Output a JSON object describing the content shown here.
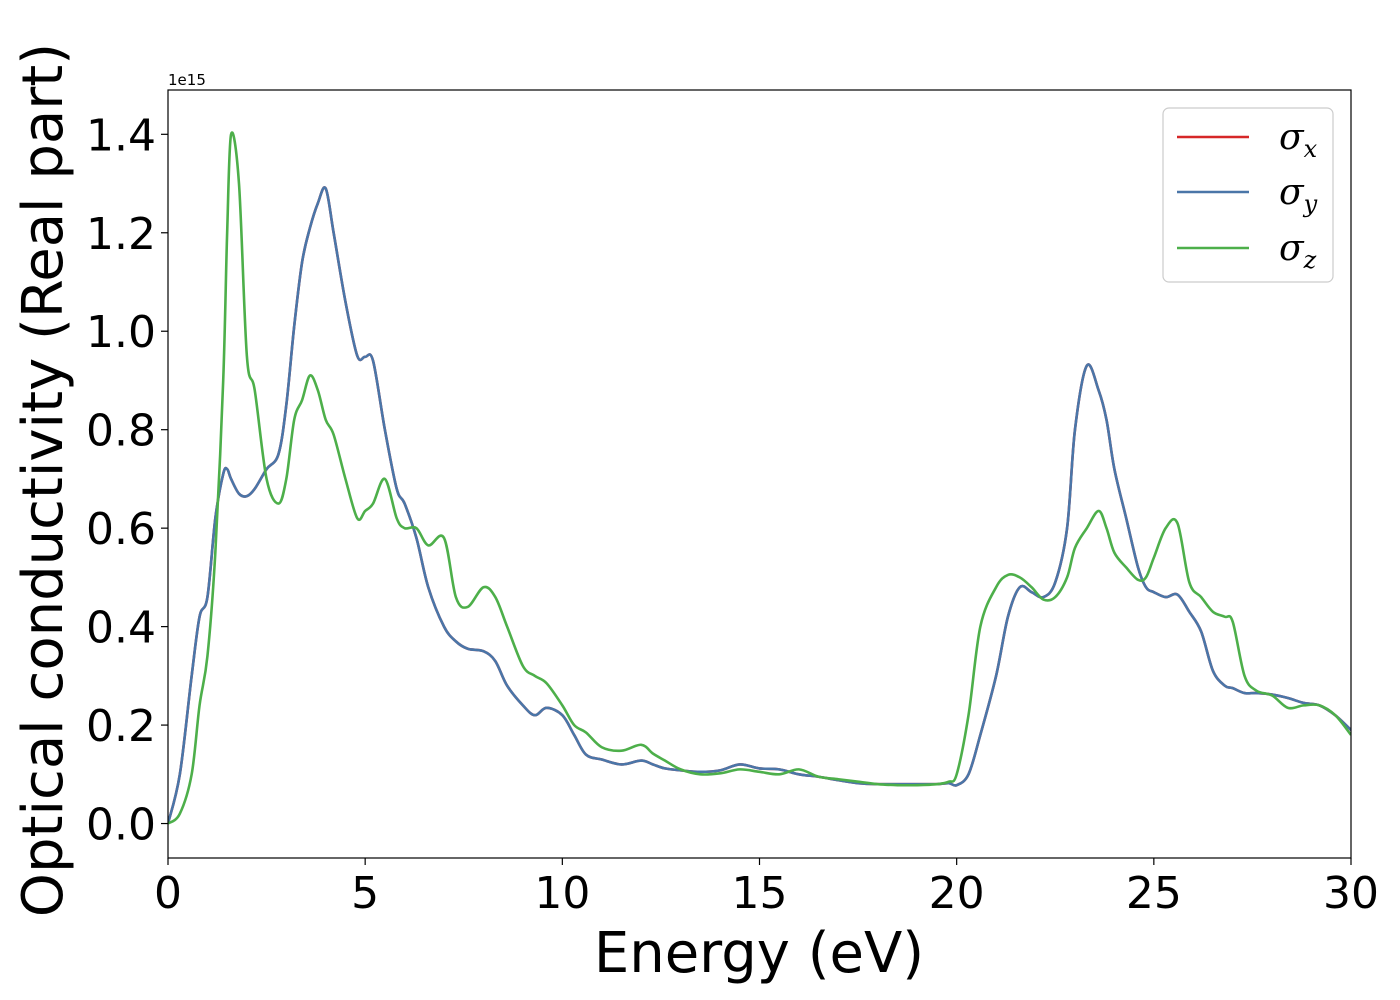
{
  "chart_data": {
    "type": "line",
    "xlabel": "Energy (eV)",
    "ylabel": "Optical conductivity (Real part)",
    "y_offset_text": "1e15",
    "xlim": [
      0,
      30
    ],
    "ylim": [
      -0.07,
      1.49
    ],
    "x_ticks": [
      0,
      5,
      10,
      15,
      20,
      25,
      30
    ],
    "x_tick_labels": [
      "0",
      "5",
      "10",
      "15",
      "20",
      "25",
      "30"
    ],
    "y_ticks": [
      0.0,
      0.2,
      0.4,
      0.6,
      0.8,
      1.0,
      1.2,
      1.4
    ],
    "y_tick_labels": [
      "0.0",
      "0.2",
      "0.4",
      "0.6",
      "0.8",
      "1.0",
      "1.2",
      "1.4"
    ],
    "grid": false,
    "legend_position": "top-right",
    "x": [
      0,
      0.3,
      0.6,
      0.8,
      1.0,
      1.2,
      1.4,
      1.5,
      1.6,
      1.8,
      2.0,
      2.2,
      2.5,
      2.8,
      3.0,
      3.2,
      3.4,
      3.6,
      3.8,
      4.0,
      4.2,
      4.5,
      4.8,
      5.0,
      5.2,
      5.5,
      5.8,
      6.0,
      6.3,
      6.6,
      7.0,
      7.3,
      7.6,
      8.0,
      8.3,
      8.6,
      9.0,
      9.3,
      9.6,
      10.0,
      10.3,
      10.6,
      11.0,
      11.5,
      12.0,
      12.3,
      12.6,
      13.0,
      13.5,
      14.0,
      14.5,
      15.0,
      15.5,
      16.0,
      16.5,
      17.0,
      17.5,
      18.0,
      18.5,
      19.0,
      19.5,
      19.8,
      20.0,
      20.3,
      20.6,
      21.0,
      21.3,
      21.6,
      21.9,
      22.2,
      22.5,
      22.8,
      23.0,
      23.3,
      23.6,
      23.8,
      24.0,
      24.3,
      24.6,
      24.8,
      25.0,
      25.3,
      25.6,
      25.9,
      26.2,
      26.5,
      26.8,
      27.0,
      27.3,
      27.6,
      28.0,
      28.4,
      28.8,
      29.2,
      29.6,
      30.0
    ],
    "series": [
      {
        "name": "σx",
        "sub": "x",
        "color": "#d62728",
        "values": [
          0.0,
          0.1,
          0.3,
          0.42,
          0.46,
          0.62,
          0.71,
          0.72,
          0.7,
          0.67,
          0.665,
          0.68,
          0.72,
          0.75,
          0.85,
          1.01,
          1.14,
          1.21,
          1.26,
          1.29,
          1.2,
          1.06,
          0.95,
          0.948,
          0.94,
          0.8,
          0.68,
          0.65,
          0.58,
          0.48,
          0.4,
          0.37,
          0.355,
          0.35,
          0.33,
          0.28,
          0.24,
          0.22,
          0.235,
          0.22,
          0.18,
          0.14,
          0.13,
          0.12,
          0.128,
          0.12,
          0.112,
          0.108,
          0.105,
          0.108,
          0.12,
          0.112,
          0.11,
          0.1,
          0.095,
          0.088,
          0.082,
          0.08,
          0.08,
          0.08,
          0.08,
          0.082,
          0.078,
          0.1,
          0.18,
          0.3,
          0.42,
          0.48,
          0.47,
          0.46,
          0.49,
          0.6,
          0.8,
          0.93,
          0.88,
          0.82,
          0.72,
          0.62,
          0.52,
          0.48,
          0.47,
          0.46,
          0.465,
          0.43,
          0.39,
          0.31,
          0.28,
          0.275,
          0.265,
          0.265,
          0.262,
          0.255,
          0.245,
          0.24,
          0.22,
          0.19
        ]
      },
      {
        "name": "σy",
        "sub": "y",
        "color": "#4a76a8",
        "values": [
          0.0,
          0.1,
          0.3,
          0.42,
          0.46,
          0.62,
          0.71,
          0.72,
          0.7,
          0.67,
          0.665,
          0.68,
          0.72,
          0.75,
          0.85,
          1.01,
          1.14,
          1.21,
          1.26,
          1.29,
          1.2,
          1.06,
          0.95,
          0.948,
          0.94,
          0.8,
          0.68,
          0.65,
          0.58,
          0.48,
          0.4,
          0.37,
          0.355,
          0.35,
          0.33,
          0.28,
          0.24,
          0.22,
          0.235,
          0.22,
          0.18,
          0.14,
          0.13,
          0.12,
          0.128,
          0.12,
          0.112,
          0.108,
          0.105,
          0.108,
          0.12,
          0.112,
          0.11,
          0.1,
          0.095,
          0.088,
          0.082,
          0.08,
          0.08,
          0.08,
          0.08,
          0.082,
          0.078,
          0.1,
          0.18,
          0.3,
          0.42,
          0.48,
          0.47,
          0.46,
          0.49,
          0.6,
          0.8,
          0.93,
          0.88,
          0.82,
          0.72,
          0.62,
          0.52,
          0.48,
          0.47,
          0.46,
          0.465,
          0.43,
          0.39,
          0.31,
          0.28,
          0.275,
          0.265,
          0.265,
          0.262,
          0.255,
          0.245,
          0.24,
          0.22,
          0.19
        ]
      },
      {
        "name": "σz",
        "sub": "z",
        "color": "#4daf4a",
        "values": [
          0.0,
          0.02,
          0.1,
          0.24,
          0.34,
          0.55,
          0.9,
          1.2,
          1.4,
          1.3,
          0.95,
          0.88,
          0.7,
          0.65,
          0.7,
          0.82,
          0.86,
          0.91,
          0.88,
          0.82,
          0.79,
          0.7,
          0.62,
          0.635,
          0.65,
          0.7,
          0.62,
          0.6,
          0.6,
          0.565,
          0.58,
          0.46,
          0.44,
          0.48,
          0.46,
          0.4,
          0.32,
          0.3,
          0.285,
          0.24,
          0.2,
          0.185,
          0.155,
          0.148,
          0.16,
          0.142,
          0.128,
          0.11,
          0.1,
          0.102,
          0.11,
          0.105,
          0.1,
          0.11,
          0.095,
          0.09,
          0.085,
          0.08,
          0.078,
          0.078,
          0.08,
          0.085,
          0.1,
          0.22,
          0.4,
          0.48,
          0.505,
          0.5,
          0.48,
          0.455,
          0.46,
          0.5,
          0.56,
          0.6,
          0.635,
          0.6,
          0.55,
          0.52,
          0.495,
          0.5,
          0.54,
          0.6,
          0.61,
          0.49,
          0.46,
          0.43,
          0.42,
          0.41,
          0.3,
          0.27,
          0.26,
          0.235,
          0.24,
          0.24,
          0.22,
          0.18
        ]
      }
    ]
  }
}
